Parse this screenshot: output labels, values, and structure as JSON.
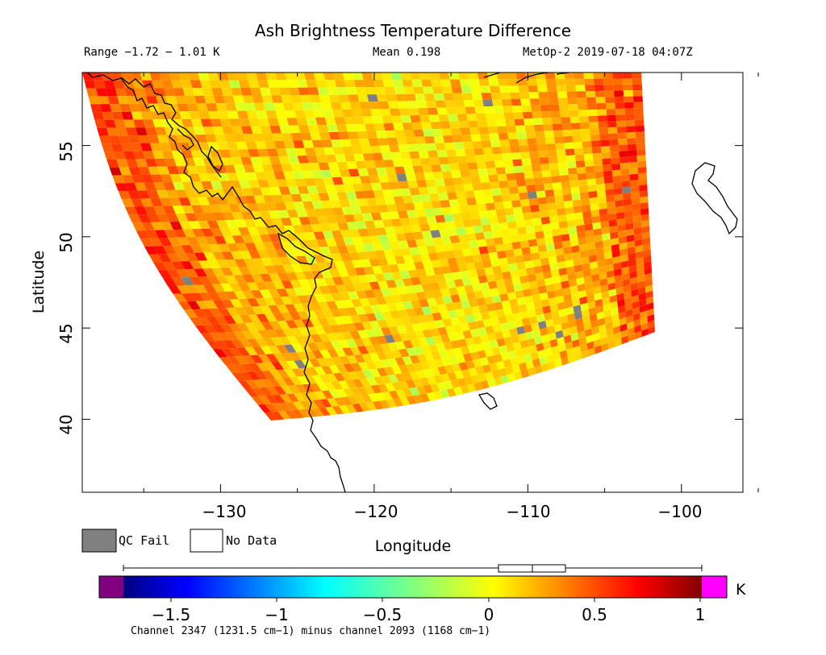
{
  "header": {
    "title": "Ash Brightness Temperature Difference",
    "range": "Range −1.72 − 1.01 K",
    "mean": "Mean 0.198",
    "satellite_time": "MetOp-2 2019-07-18 04:07Z"
  },
  "map": {
    "xlabel": "Longitude",
    "ylabel": "Latitude",
    "x_ticks": [
      "−130",
      "−120",
      "−110",
      "−100"
    ],
    "y_ticks": [
      "40",
      "45",
      "50",
      "55"
    ],
    "lon_range": [
      -139,
      -96
    ],
    "lat_range": [
      36,
      59
    ],
    "legend": {
      "qc_fail_label": "QC Fail",
      "no_data_label": "No Data",
      "qc_fail_color": "#808080"
    },
    "coastline_color": "#000000"
  },
  "colorbar": {
    "ticks": [
      "−1.5",
      "−1",
      "−0.5",
      "0",
      "0.5",
      "1"
    ],
    "unit": "K",
    "range": [
      -1.72,
      1.01
    ],
    "under_color": "#800080",
    "over_color": "#ff00ff",
    "caption": "Channel 2347 (1231.5 cm−1) minus channel 2093 (1168 cm−1)",
    "boxplot": {
      "min": -1.72,
      "q1": 0.05,
      "median": 0.21,
      "q3": 0.37,
      "max": 1.01
    }
  }
}
